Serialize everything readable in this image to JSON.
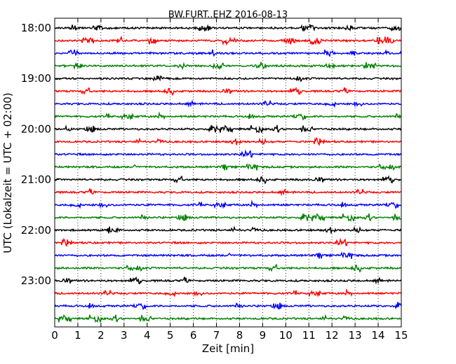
{
  "chart_data": {
    "type": "line",
    "title": "BW.FURT..EHZ 2016-08-13",
    "xlabel": "Zeit  [min]",
    "ylabel": "UTC (Lokalzeit = UTC + 02:00)",
    "xlim": [
      0,
      15
    ],
    "x_ticks": [
      "0",
      "1",
      "2",
      "3",
      "4",
      "5",
      "6",
      "7",
      "8",
      "9",
      "10",
      "11",
      "12",
      "13",
      "14",
      "15"
    ],
    "y_ticks": [
      "18:00",
      "19:00",
      "20:00",
      "21:00",
      "22:00",
      "23:00"
    ],
    "grid": "vertical dotted",
    "trace_colors": [
      "#000000",
      "#ff0000",
      "#0000ff",
      "#008000"
    ],
    "traces": [
      {
        "start": "18:00",
        "color": "#000000"
      },
      {
        "start": "18:15",
        "color": "#ff0000"
      },
      {
        "start": "18:30",
        "color": "#0000ff"
      },
      {
        "start": "18:45",
        "color": "#008000"
      },
      {
        "start": "19:00",
        "color": "#000000"
      },
      {
        "start": "19:15",
        "color": "#ff0000"
      },
      {
        "start": "19:30",
        "color": "#0000ff"
      },
      {
        "start": "19:45",
        "color": "#008000"
      },
      {
        "start": "20:00",
        "color": "#000000"
      },
      {
        "start": "20:15",
        "color": "#ff0000"
      },
      {
        "start": "20:30",
        "color": "#0000ff"
      },
      {
        "start": "20:45",
        "color": "#008000"
      },
      {
        "start": "21:00",
        "color": "#000000"
      },
      {
        "start": "21:15",
        "color": "#ff0000"
      },
      {
        "start": "21:30",
        "color": "#0000ff"
      },
      {
        "start": "21:45",
        "color": "#008000"
      },
      {
        "start": "22:00",
        "color": "#000000"
      },
      {
        "start": "22:15",
        "color": "#ff0000"
      },
      {
        "start": "22:30",
        "color": "#0000ff"
      },
      {
        "start": "22:45",
        "color": "#008000"
      },
      {
        "start": "23:00",
        "color": "#000000"
      },
      {
        "start": "23:15",
        "color": "#ff0000"
      },
      {
        "start": "23:30",
        "color": "#0000ff"
      },
      {
        "start": "23:45",
        "color": "#008000"
      }
    ]
  }
}
